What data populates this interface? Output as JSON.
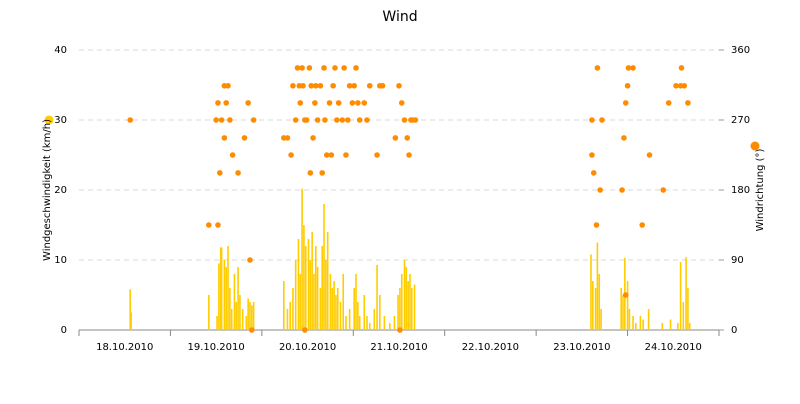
{
  "chart_data": {
    "type": "bar",
    "title": "Wind",
    "y_label": "Windgeschwindigkeit (km/h)",
    "y2_label": "Windrichtung (°)",
    "xlim": [
      0,
      7
    ],
    "xticks": [
      {
        "value": 0.5,
        "label": "18.10.2010"
      },
      {
        "value": 1.5,
        "label": "19.10.2010"
      },
      {
        "value": 2.5,
        "label": "20.10.2010"
      },
      {
        "value": 3.5,
        "label": "21.10.2010"
      },
      {
        "value": 4.5,
        "label": "22.10.2010"
      },
      {
        "value": 5.5,
        "label": "23.10.2010"
      },
      {
        "value": 6.5,
        "label": "24.10.2010"
      }
    ],
    "ylim": [
      0,
      40
    ],
    "yticks": [
      0,
      10,
      20,
      30,
      40
    ],
    "y2lim": [
      0,
      360
    ],
    "y2ticks": [
      0,
      90,
      180,
      270,
      360
    ],
    "grid": true,
    "series": [
      {
        "type": "bar",
        "color": "#ffcc00",
        "x": [
          0.56,
          0.57,
          1.42,
          1.51,
          1.53,
          1.55,
          1.56,
          1.59,
          1.61,
          1.63,
          1.65,
          1.67,
          1.7,
          1.72,
          1.74,
          1.76,
          1.79,
          1.83,
          1.85,
          1.87,
          1.89,
          1.91,
          2.24,
          2.28,
          2.31,
          2.34,
          2.37,
          2.4,
          2.42,
          2.44,
          2.46,
          2.48,
          2.51,
          2.53,
          2.55,
          2.57,
          2.59,
          2.61,
          2.64,
          2.66,
          2.68,
          2.7,
          2.72,
          2.75,
          2.77,
          2.79,
          2.81,
          2.83,
          2.86,
          2.89,
          2.92,
          2.96,
          3.01,
          3.03,
          3.05,
          3.07,
          3.12,
          3.15,
          3.18,
          3.23,
          3.26,
          3.29,
          3.34,
          3.4,
          3.45,
          3.49,
          3.51,
          3.53,
          3.56,
          3.58,
          3.6,
          3.62,
          3.64,
          3.67,
          5.6,
          5.62,
          5.65,
          5.67,
          5.69,
          5.71,
          5.93,
          5.95,
          5.97,
          6.0,
          6.02,
          6.06,
          6.09,
          6.14,
          6.17,
          6.23,
          6.38,
          6.47,
          6.55,
          6.58,
          6.61,
          6.64,
          6.66,
          6.68
        ],
        "values": [
          5.8,
          2.5,
          5,
          2,
          9.5,
          11.8,
          11.8,
          10,
          9,
          12,
          6,
          3,
          8,
          4,
          9,
          5,
          3,
          2,
          4.5,
          4,
          3.5,
          4,
          7,
          3,
          4,
          6,
          10,
          13,
          8,
          20.2,
          15,
          12,
          13,
          10,
          14,
          8,
          12,
          9,
          6,
          12,
          18,
          10,
          14,
          8,
          6,
          7,
          5,
          6,
          4,
          8,
          2,
          3,
          6,
          8,
          4,
          2,
          5,
          2,
          1,
          3,
          9.3,
          5,
          2,
          1,
          2,
          5,
          6,
          8,
          10,
          9,
          7,
          8,
          6,
          6.5,
          10.8,
          7,
          6,
          12.5,
          8,
          3,
          6,
          5,
          10.3,
          7,
          3,
          2,
          1,
          2,
          1.5,
          3,
          1,
          1.5,
          1,
          9.7,
          4,
          10.4,
          6,
          1
        ]
      },
      {
        "type": "scatter",
        "axis": "y2",
        "color": "#ff8c00",
        "x": [
          0.56,
          1.42,
          1.52,
          1.5,
          1.52,
          1.54,
          1.56,
          1.59,
          1.61,
          1.63,
          1.59,
          1.65,
          1.68,
          1.74,
          1.81,
          1.85,
          1.87,
          1.89,
          1.91,
          2.24,
          2.28,
          2.32,
          2.34,
          2.37,
          2.39,
          2.41,
          2.42,
          2.44,
          2.45,
          2.47,
          2.49,
          2.52,
          2.53,
          2.54,
          2.56,
          2.58,
          2.59,
          2.61,
          2.64,
          2.66,
          2.68,
          2.69,
          2.71,
          2.74,
          2.76,
          2.78,
          2.8,
          2.82,
          2.84,
          2.88,
          2.9,
          2.92,
          2.94,
          2.96,
          2.99,
          3.01,
          3.03,
          3.05,
          3.07,
          2.47,
          3.12,
          3.15,
          3.18,
          3.26,
          3.29,
          3.32,
          3.46,
          3.5,
          3.53,
          3.56,
          3.59,
          3.61,
          3.63,
          3.65,
          3.68,
          3.51,
          5.61,
          5.61,
          5.63,
          5.66,
          5.67,
          5.7,
          5.72,
          5.94,
          5.96,
          5.98,
          6.0,
          6.01,
          5.98,
          6.06,
          6.16,
          6.24,
          6.39,
          6.45,
          6.53,
          6.58,
          6.59,
          6.62,
          6.66
        ],
        "values": [
          270,
          135,
          135,
          270,
          292,
          202,
          270,
          247,
          292,
          314,
          314,
          270,
          225,
          202,
          247,
          292,
          90,
          0,
          270,
          247,
          247,
          225,
          314,
          270,
          337,
          314,
          292,
          337,
          314,
          270,
          270,
          337,
          202,
          314,
          247,
          292,
          314,
          270,
          314,
          202,
          337,
          270,
          225,
          292,
          225,
          314,
          337,
          270,
          292,
          270,
          337,
          225,
          270,
          314,
          292,
          314,
          337,
          292,
          270,
          0,
          292,
          270,
          314,
          225,
          314,
          314,
          247,
          314,
          292,
          270,
          247,
          225,
          270,
          270,
          270,
          0,
          270,
          225,
          202,
          135,
          337,
          180,
          270,
          180,
          247,
          292,
          314,
          337,
          45,
          337,
          135,
          225,
          180,
          292,
          314,
          314,
          337,
          314,
          292
        ]
      }
    ]
  }
}
